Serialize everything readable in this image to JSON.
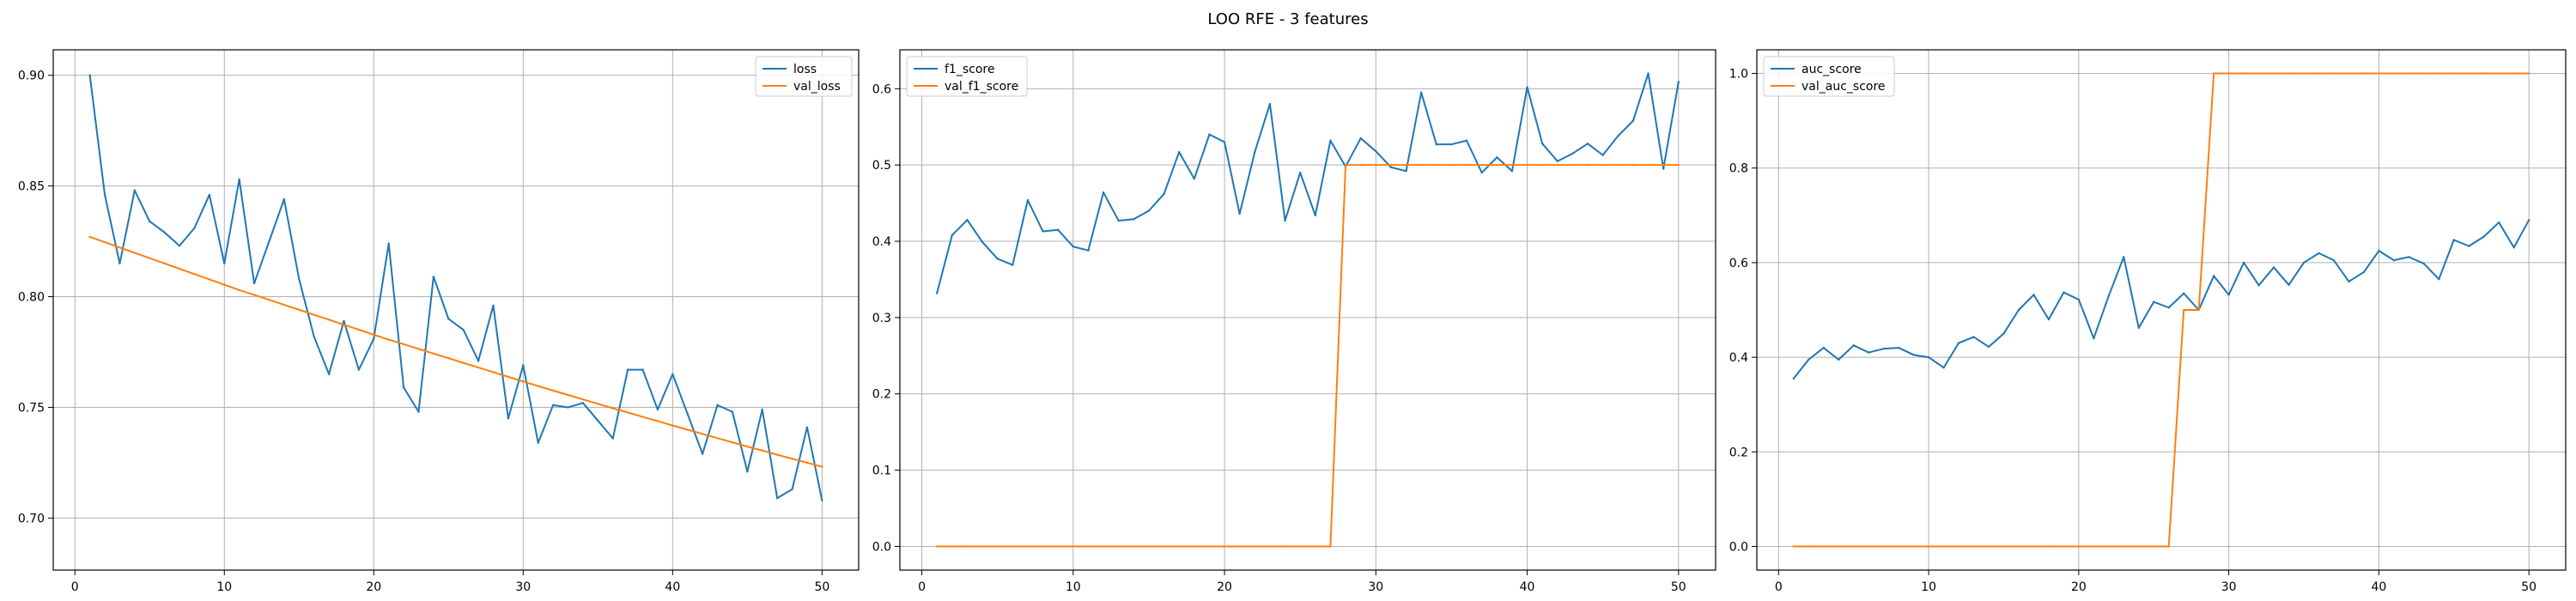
{
  "figure": {
    "title": "LOO RFE - 3 features"
  },
  "colors": {
    "series1": "#1f77b4",
    "series2": "#ff7f0e",
    "grid": "#b0b0b0",
    "axis": "#000000"
  },
  "chart_data": [
    {
      "type": "line",
      "title": "",
      "xlabel": "",
      "ylabel": "",
      "xlim": [
        -1.45,
        52.45
      ],
      "ylim": [
        0.6765,
        0.9115
      ],
      "xticks": [
        0,
        10,
        20,
        30,
        40,
        50
      ],
      "yticks": [
        0.7,
        0.75,
        0.8,
        0.85,
        0.9
      ],
      "ytick_labels": [
        "0.70",
        "0.75",
        "0.80",
        "0.85",
        "0.90"
      ],
      "grid": true,
      "legend_position": "top-right",
      "x": [
        1,
        2,
        3,
        4,
        5,
        6,
        7,
        8,
        9,
        10,
        11,
        12,
        13,
        14,
        15,
        16,
        17,
        18,
        19,
        20,
        21,
        22,
        23,
        24,
        25,
        26,
        27,
        28,
        29,
        30,
        31,
        32,
        33,
        34,
        35,
        36,
        37,
        38,
        39,
        40,
        41,
        42,
        43,
        44,
        45,
        46,
        47,
        48,
        49,
        50
      ],
      "series": [
        {
          "name": "loss",
          "values": [
            0.9,
            0.846,
            0.815,
            0.848,
            0.834,
            0.829,
            0.823,
            0.831,
            0.846,
            0.815,
            0.853,
            0.806,
            0.825,
            0.844,
            0.808,
            0.782,
            0.765,
            0.789,
            0.767,
            0.781,
            0.824,
            0.759,
            0.748,
            0.809,
            0.79,
            0.785,
            0.771,
            0.796,
            0.745,
            0.769,
            0.734,
            0.751,
            0.75,
            0.752,
            0.744,
            0.736,
            0.767,
            0.767,
            0.749,
            0.765,
            0.747,
            0.729,
            0.751,
            0.748,
            0.721,
            0.749,
            0.709,
            0.713,
            0.741,
            0.708
          ]
        },
        {
          "name": "val_loss",
          "values": [
            0.827,
            0.8246,
            0.8222,
            0.8198,
            0.8174,
            0.815,
            0.8126,
            0.8102,
            0.8078,
            0.8054,
            0.803,
            0.8008,
            0.7986,
            0.7963,
            0.7941,
            0.7918,
            0.7896,
            0.7873,
            0.7851,
            0.7828,
            0.7806,
            0.7785,
            0.7764,
            0.7743,
            0.7722,
            0.7701,
            0.768,
            0.7659,
            0.7638,
            0.7617,
            0.7596,
            0.7576,
            0.7556,
            0.7536,
            0.7516,
            0.7496,
            0.7477,
            0.7457,
            0.7438,
            0.7418,
            0.7399,
            0.738,
            0.7361,
            0.7342,
            0.7323,
            0.7305,
            0.7286,
            0.7268,
            0.725,
            0.7232
          ]
        }
      ]
    },
    {
      "type": "line",
      "title": "",
      "xlabel": "",
      "ylabel": "",
      "xlim": [
        -1.45,
        52.45
      ],
      "ylim": [
        -0.031,
        0.651
      ],
      "xticks": [
        0,
        10,
        20,
        30,
        40,
        50
      ],
      "yticks": [
        0.0,
        0.1,
        0.2,
        0.3,
        0.4,
        0.5,
        0.6
      ],
      "ytick_labels": [
        "0.0",
        "0.1",
        "0.2",
        "0.3",
        "0.4",
        "0.5",
        "0.6"
      ],
      "grid": true,
      "legend_position": "top-left",
      "x": [
        1,
        2,
        3,
        4,
        5,
        6,
        7,
        8,
        9,
        10,
        11,
        12,
        13,
        14,
        15,
        16,
        17,
        18,
        19,
        20,
        21,
        22,
        23,
        24,
        25,
        26,
        27,
        28,
        29,
        30,
        31,
        32,
        33,
        34,
        35,
        36,
        37,
        38,
        39,
        40,
        41,
        42,
        43,
        44,
        45,
        46,
        47,
        48,
        49,
        50
      ],
      "series": [
        {
          "name": "f1_score",
          "values": [
            0.332,
            0.408,
            0.428,
            0.399,
            0.377,
            0.369,
            0.454,
            0.413,
            0.415,
            0.393,
            0.388,
            0.464,
            0.427,
            0.429,
            0.44,
            0.462,
            0.517,
            0.482,
            0.54,
            0.53,
            0.436,
            0.517,
            0.58,
            0.427,
            0.49,
            0.434,
            0.532,
            0.498,
            0.535,
            0.518,
            0.497,
            0.492,
            0.595,
            0.527,
            0.527,
            0.532,
            0.49,
            0.51,
            0.492,
            0.602,
            0.528,
            0.505,
            0.515,
            0.528,
            0.513,
            0.538,
            0.558,
            0.62,
            0.495,
            0.609
          ]
        },
        {
          "name": "val_f1_score",
          "values": [
            0,
            0,
            0,
            0,
            0,
            0,
            0,
            0,
            0,
            0,
            0,
            0,
            0,
            0,
            0,
            0,
            0,
            0,
            0,
            0,
            0,
            0,
            0,
            0,
            0,
            0,
            0,
            0.5,
            0.5,
            0.5,
            0.5,
            0.5,
            0.5,
            0.5,
            0.5,
            0.5,
            0.5,
            0.5,
            0.5,
            0.5,
            0.5,
            0.5,
            0.5,
            0.5,
            0.5,
            0.5,
            0.5,
            0.5,
            0.5,
            0.5
          ]
        }
      ]
    },
    {
      "type": "line",
      "title": "",
      "xlabel": "",
      "ylabel": "",
      "xlim": [
        -1.45,
        52.45
      ],
      "ylim": [
        -0.05,
        1.05
      ],
      "xticks": [
        0,
        10,
        20,
        30,
        40,
        50
      ],
      "yticks": [
        0.0,
        0.2,
        0.4,
        0.6,
        0.8,
        1.0
      ],
      "ytick_labels": [
        "0.0",
        "0.2",
        "0.4",
        "0.6",
        "0.8",
        "1.0"
      ],
      "grid": true,
      "legend_position": "top-left",
      "x": [
        1,
        2,
        3,
        4,
        5,
        6,
        7,
        8,
        9,
        10,
        11,
        12,
        13,
        14,
        15,
        16,
        17,
        18,
        19,
        20,
        21,
        22,
        23,
        24,
        25,
        26,
        27,
        28,
        29,
        30,
        31,
        32,
        33,
        34,
        35,
        36,
        37,
        38,
        39,
        40,
        41,
        42,
        43,
        44,
        45,
        46,
        47,
        48,
        49,
        50
      ],
      "series": [
        {
          "name": "auc_score",
          "values": [
            0.355,
            0.395,
            0.42,
            0.395,
            0.425,
            0.41,
            0.418,
            0.42,
            0.405,
            0.4,
            0.378,
            0.43,
            0.443,
            0.422,
            0.45,
            0.5,
            0.532,
            0.48,
            0.537,
            0.522,
            0.44,
            0.53,
            0.612,
            0.462,
            0.517,
            0.505,
            0.535,
            0.5,
            0.572,
            0.532,
            0.6,
            0.552,
            0.59,
            0.553,
            0.6,
            0.62,
            0.605,
            0.56,
            0.58,
            0.625,
            0.605,
            0.612,
            0.598,
            0.565,
            0.648,
            0.635,
            0.655,
            0.685,
            0.632,
            0.69
          ]
        },
        {
          "name": "val_auc_score",
          "values": [
            0,
            0,
            0,
            0,
            0,
            0,
            0,
            0,
            0,
            0,
            0,
            0,
            0,
            0,
            0,
            0,
            0,
            0,
            0,
            0,
            0,
            0,
            0,
            0,
            0,
            0,
            0.5,
            0.5,
            1,
            1,
            1,
            1,
            1,
            1,
            1,
            1,
            1,
            1,
            1,
            1,
            1,
            1,
            1,
            1,
            1,
            1,
            1,
            1,
            1,
            1
          ]
        }
      ]
    }
  ]
}
